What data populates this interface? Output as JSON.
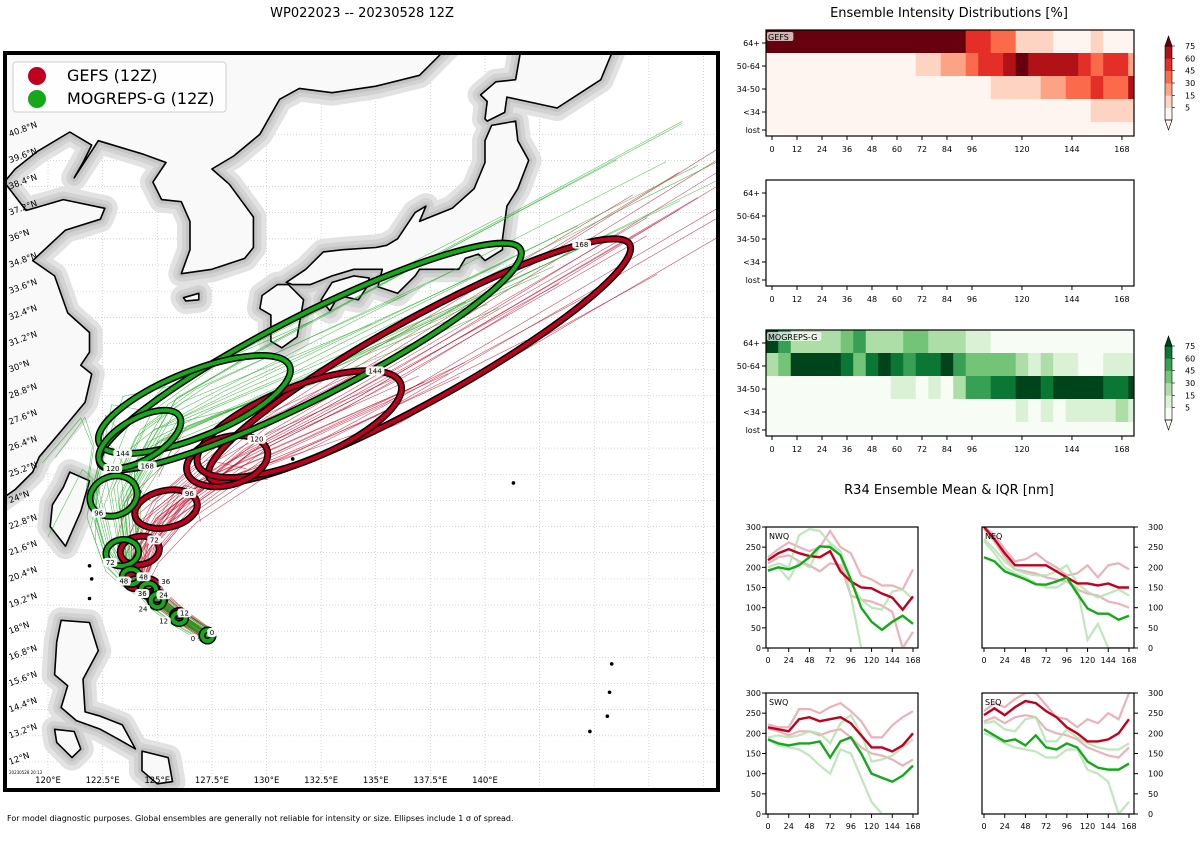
{
  "map": {
    "title": "WP022023 -- 20230528 12Z",
    "timestamp": "20230528 20:13",
    "footnote": "For model diagnostic purposes. Global ensembles are generally not reliable for intensity or size. Ellipses include 1 σ of spread.",
    "legend": [
      {
        "label": "GEFS (12Z)",
        "color": "#c0001f"
      },
      {
        "label": "MOGREPS-G (12Z)",
        "color": "#15a91a"
      }
    ],
    "lon_ticks": [
      "120°E",
      "122.5°E",
      "125°E",
      "127.5°E",
      "130°E",
      "132.5°E",
      "135°E",
      "137.5°E",
      "140°E"
    ],
    "lat_ticks": [
      "12°N",
      "13.2°N",
      "14.4°N",
      "15.6°N",
      "16.8°N",
      "18°N",
      "19.2°N",
      "20.4°N",
      "21.6°N",
      "22.8°N",
      "24°N",
      "25.2°N",
      "26.4°N",
      "27.6°N",
      "28.8°N",
      "30°N",
      "31.2°N",
      "32.4°N",
      "33.6°N",
      "34.8°N",
      "36°N",
      "37.2°N",
      "38.4°N",
      "39.6°N",
      "40.8°N"
    ],
    "ellipses": {
      "GEFS": [
        {
          "hour": "0",
          "lon": 127.3,
          "lat": 17.8,
          "a": 0.25,
          "b": 0.25,
          "rot": 0
        },
        {
          "hour": "12",
          "lon": 126.0,
          "lat": 18.7,
          "a": 0.3,
          "b": 0.25,
          "rot": 0
        },
        {
          "hour": "24",
          "lon": 125.0,
          "lat": 19.5,
          "a": 0.35,
          "b": 0.3,
          "rot": 0
        },
        {
          "hour": "36",
          "lon": 124.6,
          "lat": 20.1,
          "a": 0.4,
          "b": 0.3,
          "rot": 0
        },
        {
          "hour": "48",
          "lon": 124.0,
          "lat": 20.3,
          "a": 0.45,
          "b": 0.35,
          "rot": 0
        },
        {
          "hour": "72",
          "lon": 124.2,
          "lat": 21.7,
          "a": 0.9,
          "b": 0.65,
          "rot": -10
        },
        {
          "hour": "96",
          "lon": 125.4,
          "lat": 23.6,
          "a": 1.45,
          "b": 0.85,
          "rot": -12
        },
        {
          "hour": "120",
          "lon": 128.2,
          "lat": 25.8,
          "a": 1.9,
          "b": 1.1,
          "rot": -15
        },
        {
          "hour": "144",
          "lon": 131.5,
          "lat": 27.5,
          "a": 5.0,
          "b": 1.7,
          "rot": -22
        },
        {
          "hour": "168",
          "lon": 137.0,
          "lat": 30.4,
          "a": 11.0,
          "b": 1.9,
          "rot": -29
        }
      ],
      "MOGREPS-G": [
        {
          "hour": "0",
          "lon": 127.3,
          "lat": 17.8,
          "a": 0.25,
          "b": 0.25,
          "rot": 0
        },
        {
          "hour": "12",
          "lon": 126.0,
          "lat": 18.6,
          "a": 0.3,
          "b": 0.25,
          "rot": 0
        },
        {
          "hour": "24",
          "lon": 125.0,
          "lat": 19.4,
          "a": 0.3,
          "b": 0.3,
          "rot": 0
        },
        {
          "hour": "36",
          "lon": 124.6,
          "lat": 19.9,
          "a": 0.35,
          "b": 0.3,
          "rot": 0
        },
        {
          "hour": "48",
          "lon": 123.8,
          "lat": 20.5,
          "a": 0.4,
          "b": 0.35,
          "rot": 0
        },
        {
          "hour": "72",
          "lon": 123.4,
          "lat": 21.6,
          "a": 0.75,
          "b": 0.6,
          "rot": -10
        },
        {
          "hour": "96",
          "lon": 123.0,
          "lat": 24.2,
          "a": 1.1,
          "b": 0.9,
          "rot": -20
        },
        {
          "hour": "120",
          "lon": 124.2,
          "lat": 26.8,
          "a": 2.1,
          "b": 0.95,
          "rot": -30
        },
        {
          "hour": "144",
          "lon": 126.7,
          "lat": 28.4,
          "a": 4.7,
          "b": 1.5,
          "rot": -22
        },
        {
          "hour": "168",
          "lon": 132.0,
          "lat": 30.6,
          "a": 10.8,
          "b": 1.9,
          "rot": -27
        }
      ]
    }
  },
  "intensity": {
    "title": "Ensemble Intensity Distributions [%]",
    "row_labels": [
      "64+",
      "50-64",
      "34-50",
      "<34",
      "lost"
    ],
    "x_ticks": [
      "0",
      "12",
      "24",
      "36",
      "48",
      "60",
      "72",
      "84",
      "96",
      "120",
      "144",
      "168"
    ],
    "colorbar_ticks": [
      "75",
      "60",
      "45",
      "30",
      "15",
      "5"
    ],
    "panels": [
      {
        "name": "GEFS",
        "cmap": [
          "#fff5f0",
          "#fdd4c2",
          "#fca285",
          "#fb6a4a",
          "#e32f27",
          "#b11218",
          "#67000d"
        ],
        "levels": [
          [
            6,
            6,
            6,
            6,
            6,
            6,
            6,
            6,
            6,
            6,
            6,
            6,
            6,
            6,
            6,
            6,
            4,
            4,
            3,
            3,
            1,
            1,
            1,
            0,
            0,
            0,
            1,
            0,
            0,
            0
          ],
          [
            0,
            0,
            0,
            0,
            0,
            0,
            0,
            0,
            0,
            0,
            0,
            0,
            1,
            1,
            2,
            2,
            3,
            4,
            4,
            5,
            6,
            5,
            5,
            5,
            5,
            4,
            3,
            4,
            4,
            2
          ],
          [
            0,
            0,
            0,
            0,
            0,
            0,
            0,
            0,
            0,
            0,
            0,
            0,
            0,
            0,
            0,
            0,
            0,
            0,
            1,
            1,
            1,
            1,
            2,
            2,
            3,
            3,
            4,
            3,
            3,
            5
          ],
          [
            0,
            0,
            0,
            0,
            0,
            0,
            0,
            0,
            0,
            0,
            0,
            0,
            0,
            0,
            0,
            0,
            0,
            0,
            0,
            0,
            0,
            0,
            0,
            0,
            0,
            0,
            1,
            1,
            1,
            1
          ],
          [
            0,
            0,
            0,
            0,
            0,
            0,
            0,
            0,
            0,
            0,
            0,
            0,
            0,
            0,
            0,
            0,
            0,
            0,
            0,
            0,
            0,
            0,
            0,
            0,
            0,
            0,
            0,
            0,
            0,
            0
          ]
        ]
      },
      {
        "name": "",
        "cmap": null,
        "levels": null
      },
      {
        "name": "MOGREPS-G",
        "cmap": [
          "#f7fcf5",
          "#dbf1d5",
          "#aedea7",
          "#73c476",
          "#37a055",
          "#0b7734",
          "#00441b"
        ],
        "levels": [
          [
            6,
            4,
            2,
            2,
            2,
            2,
            3,
            4,
            2,
            2,
            2,
            3,
            3,
            2,
            2,
            2,
            1,
            1,
            0,
            0,
            0,
            0,
            0,
            0,
            0,
            0,
            0,
            0,
            0,
            0
          ],
          [
            2,
            3,
            6,
            6,
            6,
            6,
            5,
            3,
            5,
            6,
            5,
            4,
            5,
            5,
            6,
            4,
            3,
            3,
            3,
            3,
            2,
            1,
            2,
            1,
            1,
            0,
            0,
            1,
            1,
            1
          ],
          [
            0,
            0,
            0,
            0,
            0,
            0,
            0,
            0,
            0,
            0,
            1,
            1,
            0,
            1,
            0,
            2,
            4,
            4,
            5,
            5,
            6,
            6,
            5,
            6,
            6,
            6,
            6,
            5,
            5,
            6
          ],
          [
            0,
            0,
            0,
            0,
            0,
            0,
            0,
            0,
            0,
            0,
            0,
            0,
            0,
            0,
            0,
            0,
            0,
            0,
            0,
            0,
            1,
            0,
            1,
            0,
            1,
            1,
            1,
            1,
            2,
            1
          ],
          [
            0,
            0,
            0,
            0,
            0,
            0,
            0,
            0,
            0,
            0,
            0,
            0,
            0,
            0,
            0,
            0,
            0,
            0,
            0,
            0,
            0,
            0,
            0,
            0,
            0,
            0,
            0,
            0,
            0,
            0
          ]
        ]
      }
    ]
  },
  "chart_data": {
    "type": "line",
    "title": "R34 Ensemble Mean & IQR [nm]",
    "x": [
      0,
      12,
      24,
      36,
      48,
      60,
      72,
      84,
      96,
      108,
      120,
      132,
      144,
      156,
      168
    ],
    "x_ticks": [
      "0",
      "24",
      "48",
      "72",
      "96",
      "120",
      "144",
      "168"
    ],
    "y_ticks": [
      "0",
      "50",
      "100",
      "150",
      "200",
      "250",
      "300"
    ],
    "ylim": [
      0,
      300
    ],
    "colors": {
      "GEFS": "#c0001f",
      "GEFS_iqr": "#e8a4ae",
      "MOGREPS-G": "#15a91a",
      "MOGREPS-G_iqr": "#b3e3b0"
    },
    "panels": [
      {
        "label": "NWQ",
        "GEFS": {
          "mean": [
            218,
            235,
            245,
            235,
            228,
            225,
            240,
            190,
            165,
            150,
            148,
            135,
            125,
            95,
            128
          ],
          "q75": [
            225,
            245,
            262,
            250,
            240,
            250,
            290,
            250,
            235,
            180,
            170,
            155,
            155,
            145,
            195
          ],
          "q25": [
            210,
            225,
            230,
            215,
            205,
            190,
            210,
            205,
            130,
            120,
            115,
            105,
            90,
            0,
            40
          ]
        },
        "MOGREPS-G": {
          "mean": [
            192,
            200,
            195,
            205,
            225,
            252,
            250,
            230,
            170,
            100,
            65,
            45,
            65,
            80,
            60
          ],
          "q75": [
            200,
            210,
            200,
            280,
            295,
            290,
            260,
            240,
            160,
            120,
            100,
            95,
            140,
            145,
            120
          ],
          "q25": [
            190,
            200,
            170,
            215,
            200,
            250,
            255,
            230,
            130,
            0,
            0,
            0,
            0,
            0,
            0
          ]
        }
      },
      {
        "label": "NEQ",
        "GEFS": {
          "mean": [
            300,
            270,
            235,
            205,
            205,
            205,
            205,
            190,
            175,
            160,
            160,
            155,
            160,
            150,
            150
          ],
          "q75": [
            300,
            280,
            245,
            215,
            220,
            235,
            215,
            200,
            180,
            185,
            205,
            175,
            205,
            210,
            195
          ],
          "q25": [
            295,
            265,
            225,
            195,
            190,
            185,
            175,
            170,
            165,
            145,
            135,
            130,
            115,
            110,
            100
          ]
        },
        "MOGREPS-G": {
          "mean": [
            225,
            215,
            190,
            180,
            170,
            158,
            157,
            165,
            175,
            135,
            98,
            85,
            85,
            70,
            80
          ],
          "q75": [
            270,
            245,
            215,
            195,
            185,
            180,
            180,
            190,
            205,
            160,
            140,
            125,
            135,
            145,
            130
          ],
          "q25": [
            265,
            235,
            200,
            185,
            175,
            160,
            150,
            150,
            165,
            150,
            20,
            60,
            0,
            0,
            0
          ]
        }
      },
      {
        "label": "SWQ",
        "GEFS": {
          "mean": [
            215,
            210,
            205,
            235,
            240,
            230,
            235,
            240,
            225,
            195,
            165,
            165,
            155,
            170,
            200
          ],
          "q75": [
            222,
            215,
            215,
            260,
            260,
            250,
            265,
            275,
            255,
            230,
            190,
            190,
            220,
            240,
            255
          ],
          "q25": [
            212,
            205,
            195,
            205,
            205,
            195,
            205,
            210,
            190,
            165,
            150,
            145,
            135,
            120,
            135
          ]
        },
        "MOGREPS-G": {
          "mean": [
            185,
            175,
            170,
            175,
            175,
            180,
            140,
            180,
            190,
            150,
            100,
            90,
            80,
            95,
            120
          ],
          "q75": [
            190,
            195,
            190,
            195,
            205,
            200,
            175,
            225,
            245,
            200,
            130,
            135,
            145,
            165,
            185
          ],
          "q25": [
            185,
            170,
            165,
            160,
            145,
            120,
            100,
            160,
            150,
            90,
            30,
            0,
            0,
            0,
            0
          ]
        }
      },
      {
        "label": "SEQ",
        "GEFS": {
          "mean": [
            245,
            262,
            245,
            265,
            280,
            275,
            255,
            240,
            215,
            200,
            180,
            180,
            185,
            200,
            235
          ],
          "q75": [
            255,
            275,
            265,
            285,
            300,
            300,
            270,
            240,
            235,
            215,
            235,
            225,
            250,
            235,
            300
          ],
          "q25": [
            230,
            240,
            225,
            240,
            245,
            240,
            210,
            200,
            195,
            185,
            165,
            155,
            145,
            140,
            165
          ]
        },
        "MOGREPS-G": {
          "mean": [
            210,
            195,
            180,
            185,
            170,
            195,
            165,
            160,
            175,
            165,
            130,
            115,
            110,
            110,
            125
          ],
          "q75": [
            225,
            230,
            210,
            205,
            235,
            240,
            180,
            180,
            210,
            190,
            175,
            165,
            160,
            160,
            175
          ],
          "q25": [
            200,
            190,
            175,
            165,
            160,
            155,
            140,
            140,
            160,
            160,
            110,
            100,
            80,
            0,
            30
          ]
        }
      }
    ]
  }
}
